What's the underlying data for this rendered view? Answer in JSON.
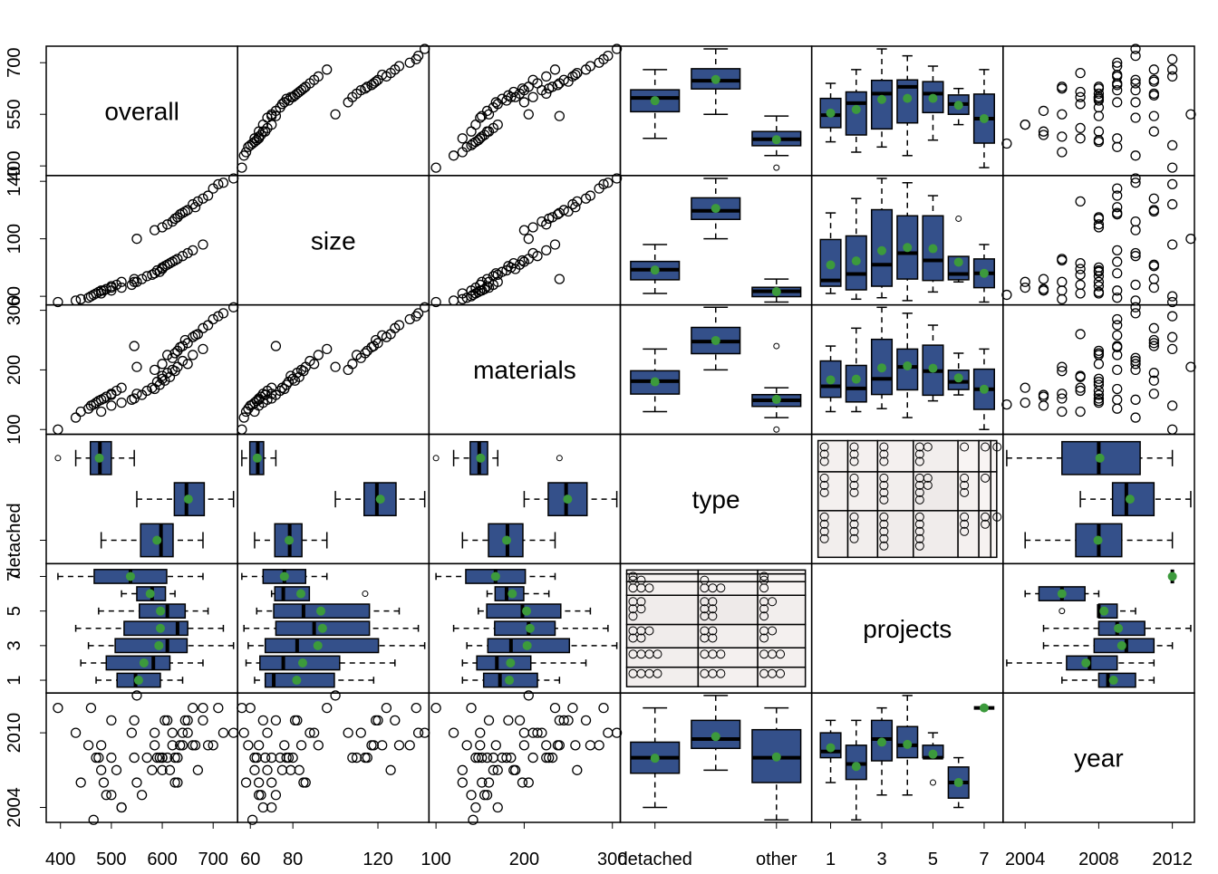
{
  "chart_data": {
    "type": "scatter-matrix",
    "box_color": "#34508a",
    "mean_color": "#3c9a3c",
    "variables": [
      {
        "name": "overall",
        "categorical": false,
        "lim": [
          372,
          748
        ],
        "xticks": [
          400,
          500,
          600,
          700
        ],
        "yticks": [
          400,
          550,
          700
        ],
        "values": [
          600,
          550,
          620,
          580,
          640,
          500,
          590,
          610,
          660,
          630,
          570,
          540,
          600,
          560,
          680,
          520,
          480,
          605,
          595,
          625,
          585,
          545,
          650,
          615,
          640,
          620,
          680,
          600,
          700,
          660,
          630,
          720,
          650,
          550,
          690,
          610,
          740,
          670,
          635,
          645,
          710,
          625,
          585,
          665,
          470,
          500,
          440,
          480,
          460,
          510,
          430,
          490,
          475,
          520,
          395,
          455,
          485,
          545,
          465,
          500
        ]
      },
      {
        "name": "size",
        "categorical": false,
        "lim": [
          54,
          144
        ],
        "xticks": [
          60,
          80,
          120
        ],
        "yticks": [
          60,
          100,
          140
        ],
        "values": [
          80,
          70,
          84,
          75,
          88,
          64,
          78,
          82,
          92,
          86,
          74,
          68,
          79,
          72,
          96,
          66,
          62,
          81,
          77,
          85,
          76,
          70,
          90,
          83,
          118,
          112,
          128,
          108,
          135,
          124,
          115,
          139,
          120,
          100,
          130,
          110,
          142,
          126,
          117,
          119,
          138,
          114,
          106,
          122,
          62,
          66,
          58,
          64,
          60,
          68,
          57,
          65,
          63,
          70,
          56,
          59,
          64,
          72,
          61,
          67
        ]
      },
      {
        "name": "materials",
        "categorical": false,
        "lim": [
          92,
          309
        ],
        "xticks": [
          100,
          200,
          300
        ],
        "yticks": [
          100,
          200,
          300
        ],
        "values": [
          185,
          160,
          200,
          170,
          215,
          140,
          180,
          195,
          225,
          205,
          165,
          150,
          190,
          158,
          235,
          145,
          130,
          182,
          175,
          198,
          168,
          152,
          210,
          188,
          240,
          220,
          270,
          210,
          285,
          255,
          232,
          295,
          245,
          205,
          275,
          225,
          305,
          260,
          238,
          250,
          290,
          228,
          200,
          258,
          145,
          160,
          130,
          150,
          140,
          165,
          120,
          155,
          148,
          170,
          100,
          135,
          152,
          240,
          142,
          158
        ]
      },
      {
        "name": "type",
        "categorical": true,
        "lim": [
          0.43,
          3.58
        ],
        "xticks": [
          {
            "value": 1,
            "label": "detached"
          },
          {
            "value": 3,
            "label": "other"
          }
        ],
        "yticks": [
          {
            "value": 1,
            "label": "detached"
          }
        ],
        "values": [
          1,
          1,
          1,
          1,
          1,
          1,
          1,
          1,
          1,
          1,
          1,
          1,
          1,
          1,
          1,
          1,
          1,
          1,
          1,
          1,
          1,
          1,
          1,
          1,
          2,
          2,
          2,
          2,
          2,
          2,
          2,
          2,
          2,
          2,
          2,
          2,
          2,
          2,
          2,
          2,
          2,
          2,
          2,
          2,
          3,
          3,
          3,
          3,
          3,
          3,
          3,
          3,
          3,
          3,
          3,
          3,
          3,
          3,
          3,
          3
        ]
      },
      {
        "name": "projects",
        "categorical": true,
        "lim": [
          0.26,
          7.74
        ],
        "xticks": [
          1,
          3,
          5,
          7
        ],
        "yticks": [
          1,
          3,
          5,
          7
        ],
        "values": [
          1,
          1,
          2,
          2,
          3,
          3,
          3,
          4,
          4,
          4,
          5,
          5,
          6,
          6,
          7,
          2,
          1,
          3,
          4,
          5,
          2,
          1,
          4,
          3,
          1,
          1,
          2,
          2,
          3,
          3,
          4,
          4,
          4,
          4,
          5,
          5,
          3,
          2,
          4,
          3,
          4,
          6,
          1,
          5,
          1,
          1,
          2,
          2,
          3,
          3,
          4,
          4,
          5,
          6,
          7,
          3,
          4,
          1,
          2,
          4
        ]
      },
      {
        "name": "year",
        "categorical": false,
        "lim": [
          2002.8,
          2013.2
        ],
        "xticks": [
          2004,
          2008,
          2012
        ],
        "yticks": [
          2004,
          2010
        ],
        "values": [
          2008,
          2006,
          2009,
          2007,
          2010,
          2005,
          2008,
          2011,
          2009,
          2006,
          2008,
          2010,
          2007,
          2005,
          2012,
          2004,
          2007,
          2011,
          2008,
          2006,
          2009,
          2008,
          2010,
          2007,
          2009,
          2010,
          2011,
          2008,
          2009,
          2012,
          2008,
          2010,
          2011,
          2013,
          2009,
          2008,
          2010,
          2007,
          2009,
          2011,
          2012,
          2008,
          2010,
          2009,
          2008,
          2011,
          2006,
          2009,
          2012,
          2007,
          2010,
          2005,
          2008,
          2004,
          2012,
          2009,
          2006,
          2011,
          2003,
          2008
        ]
      }
    ]
  }
}
